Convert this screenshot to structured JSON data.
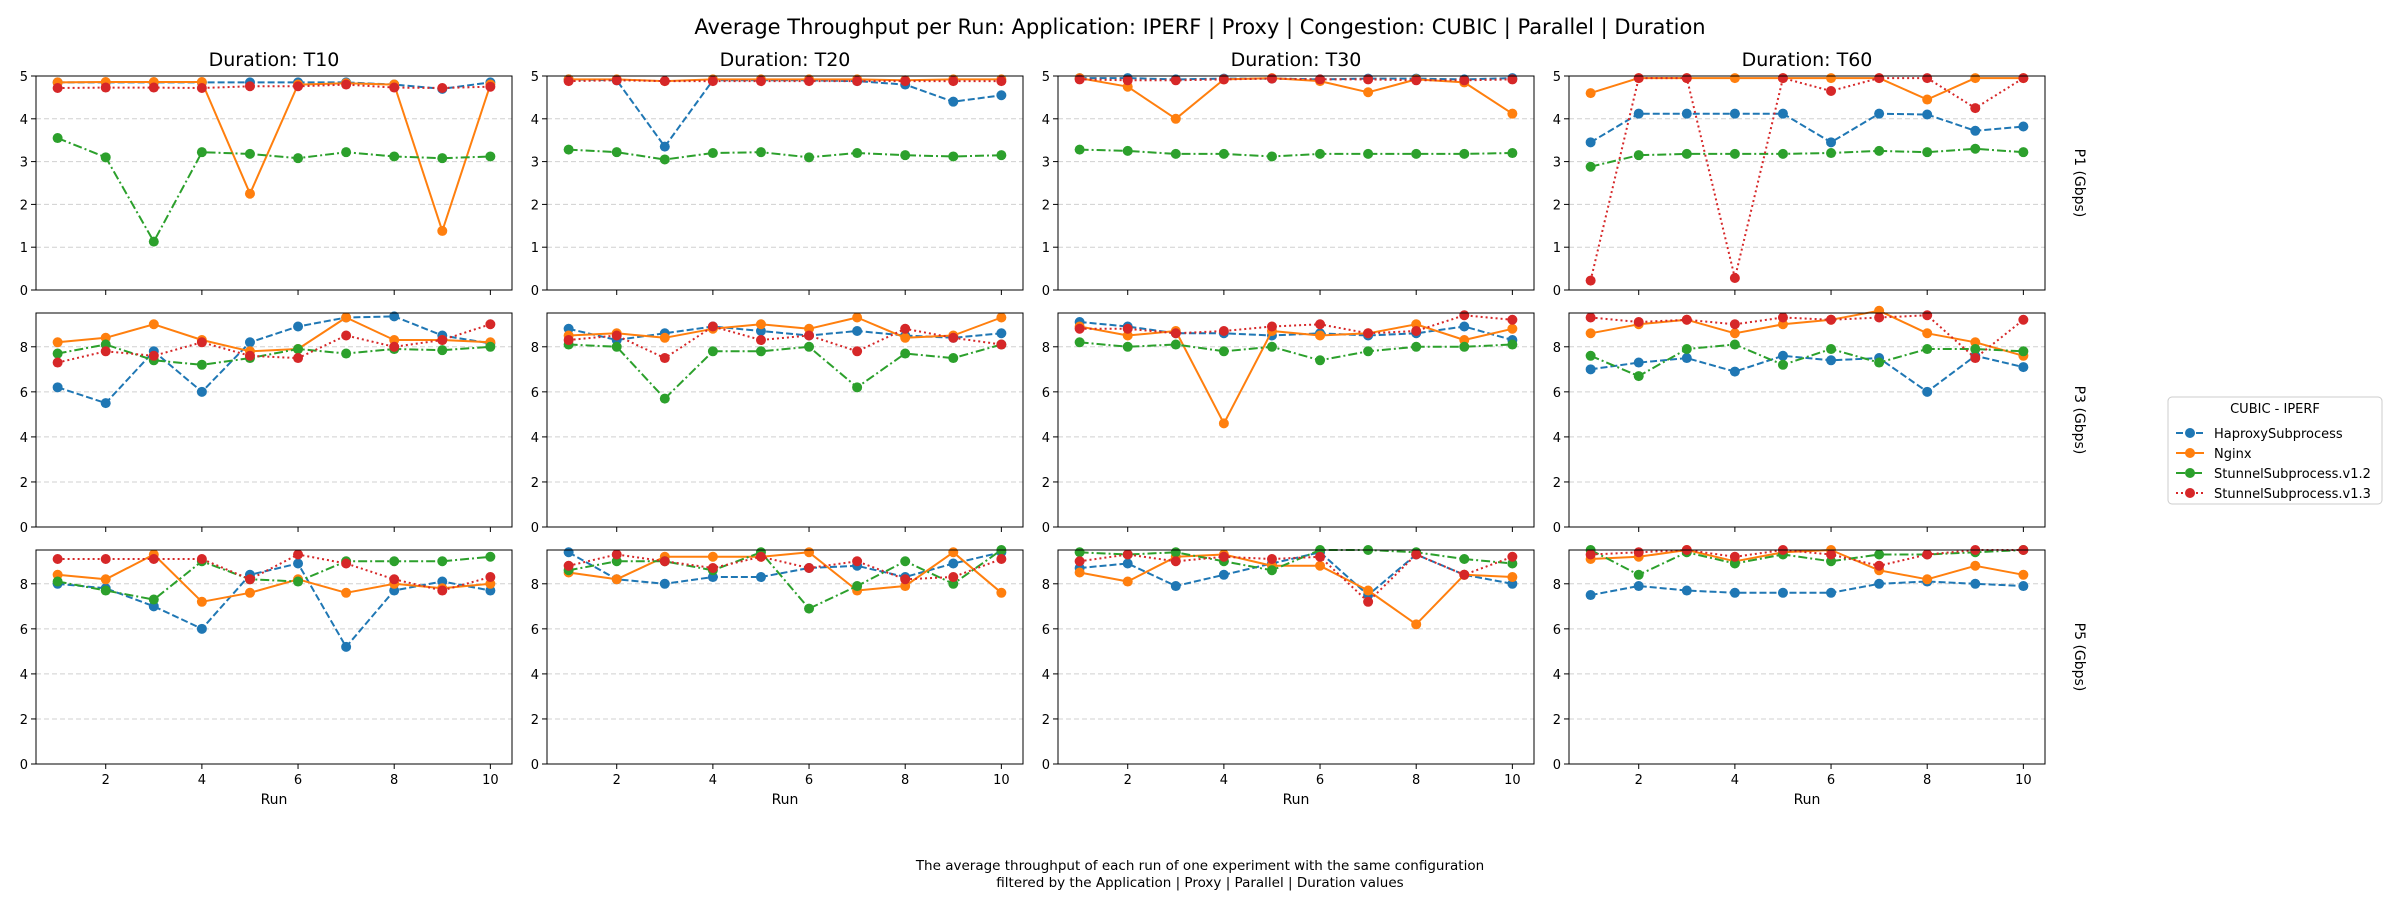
{
  "chart_data": {
    "type": "line",
    "title": "Average Throughput per Run: Application: IPERF | Proxy | Congestion: CUBIC | Parallel | Duration",
    "xlabel": "Run",
    "x": [
      1,
      2,
      3,
      4,
      5,
      6,
      7,
      8,
      9,
      10
    ],
    "xticks": [
      "2",
      "4",
      "6",
      "8",
      "10"
    ],
    "grid": "y",
    "legend": {
      "title": "CUBIC - IPERF",
      "placement": "right",
      "entries": [
        "HaproxySubprocess",
        "Nginx",
        "StunnelSubprocess.v1.2",
        "StunnelSubprocess.v1.3"
      ]
    },
    "series_styles": [
      {
        "name": "HaproxySubprocess",
        "color": "#1f77b4",
        "dash": "dashed"
      },
      {
        "name": "Nginx",
        "color": "#ff7f0e",
        "dash": "solid"
      },
      {
        "name": "StunnelSubprocess.v1.2",
        "color": "#2ca02c",
        "dash": "dashdot"
      },
      {
        "name": "StunnelSubprocess.v1.3",
        "color": "#d62728",
        "dash": "dotted"
      }
    ],
    "columns": [
      "Duration: T10",
      "Duration: T20",
      "Duration: T30",
      "Duration: T60"
    ],
    "rows": [
      {
        "ylabel": "P1 (Gbps)",
        "ylim": [
          0,
          5
        ],
        "yticks": [
          "0",
          "1",
          "2",
          "3",
          "4",
          "5"
        ]
      },
      {
        "ylabel": "P3 (Gbps)",
        "ylim": [
          0,
          9.5
        ],
        "yticks": [
          "0",
          "2",
          "4",
          "6",
          "8"
        ]
      },
      {
        "ylabel": "P5 (Gbps)",
        "ylim": [
          0,
          9.5
        ],
        "yticks": [
          "0",
          "2",
          "4",
          "6",
          "8"
        ]
      }
    ],
    "panels": [
      {
        "row": 0,
        "col": 0,
        "series": [
          {
            "name": "HaproxySubprocess",
            "values": [
              4.85,
              4.85,
              4.85,
              4.85,
              4.85,
              4.85,
              4.85,
              4.8,
              4.7,
              4.85
            ]
          },
          {
            "name": "Nginx",
            "values": [
              4.85,
              4.86,
              4.86,
              4.86,
              2.25,
              4.8,
              4.83,
              4.8,
              1.38,
              4.8
            ]
          },
          {
            "name": "StunnelSubprocess.v1.2",
            "values": [
              3.55,
              3.1,
              1.13,
              3.22,
              3.18,
              3.08,
              3.22,
              3.12,
              3.08,
              3.12
            ]
          },
          {
            "name": "StunnelSubprocess.v1.3",
            "values": [
              4.72,
              4.73,
              4.73,
              4.72,
              4.76,
              4.76,
              4.8,
              4.73,
              4.72,
              4.75
            ]
          }
        ]
      },
      {
        "row": 0,
        "col": 1,
        "series": [
          {
            "name": "HaproxySubprocess",
            "values": [
              4.92,
              4.9,
              3.35,
              4.9,
              4.9,
              4.9,
              4.88,
              4.8,
              4.4,
              4.55
            ]
          },
          {
            "name": "Nginx",
            "values": [
              4.92,
              4.92,
              4.88,
              4.92,
              4.92,
              4.92,
              4.92,
              4.9,
              4.92,
              4.92
            ]
          },
          {
            "name": "StunnelSubprocess.v1.2",
            "values": [
              3.28,
              3.22,
              3.05,
              3.2,
              3.22,
              3.1,
              3.2,
              3.15,
              3.12,
              3.15
            ]
          },
          {
            "name": "StunnelSubprocess.v1.3",
            "values": [
              4.88,
              4.9,
              4.88,
              4.88,
              4.88,
              4.88,
              4.88,
              4.88,
              4.88,
              4.88
            ]
          }
        ]
      },
      {
        "row": 0,
        "col": 2,
        "series": [
          {
            "name": "HaproxySubprocess",
            "values": [
              4.95,
              4.95,
              4.92,
              4.94,
              4.94,
              4.92,
              4.94,
              4.94,
              4.92,
              4.95
            ]
          },
          {
            "name": "Nginx",
            "values": [
              4.95,
              4.75,
              4.0,
              4.92,
              4.95,
              4.88,
              4.62,
              4.92,
              4.85,
              4.12
            ]
          },
          {
            "name": "StunnelSubprocess.v1.2",
            "values": [
              3.28,
              3.25,
              3.18,
              3.18,
              3.12,
              3.18,
              3.18,
              3.18,
              3.18,
              3.2
            ]
          },
          {
            "name": "StunnelSubprocess.v1.3",
            "values": [
              4.92,
              4.9,
              4.9,
              4.92,
              4.94,
              4.92,
              4.92,
              4.9,
              4.9,
              4.92
            ]
          }
        ]
      },
      {
        "row": 0,
        "col": 3,
        "series": [
          {
            "name": "HaproxySubprocess",
            "values": [
              3.45,
              4.12,
              4.12,
              4.12,
              4.12,
              3.45,
              4.12,
              4.1,
              3.72,
              3.82
            ]
          },
          {
            "name": "Nginx",
            "values": [
              4.6,
              4.95,
              4.95,
              4.95,
              4.95,
              4.95,
              4.95,
              4.45,
              4.95,
              4.95
            ]
          },
          {
            "name": "StunnelSubprocess.v1.2",
            "values": [
              2.88,
              3.15,
              3.18,
              3.18,
              3.18,
              3.2,
              3.25,
              3.22,
              3.3,
              3.22
            ]
          },
          {
            "name": "StunnelSubprocess.v1.3",
            "values": [
              0.22,
              4.95,
              4.95,
              0.28,
              4.95,
              4.65,
              4.95,
              4.95,
              4.25,
              4.95
            ]
          }
        ]
      },
      {
        "row": 1,
        "col": 0,
        "series": [
          {
            "name": "HaproxySubprocess",
            "values": [
              6.2,
              5.5,
              7.8,
              6.0,
              8.2,
              8.9,
              9.3,
              9.35,
              8.5,
              8.15
            ]
          },
          {
            "name": "Nginx",
            "values": [
              8.2,
              8.4,
              9.0,
              8.3,
              7.8,
              7.9,
              9.3,
              8.3,
              8.3,
              8.2
            ]
          },
          {
            "name": "StunnelSubprocess.v1.2",
            "values": [
              7.7,
              8.1,
              7.4,
              7.2,
              7.5,
              7.9,
              7.7,
              7.9,
              7.85,
              8.0
            ]
          },
          {
            "name": "StunnelSubprocess.v1.3",
            "values": [
              7.3,
              7.8,
              7.6,
              8.2,
              7.6,
              7.5,
              8.5,
              8.0,
              8.3,
              9.0
            ]
          }
        ]
      },
      {
        "row": 1,
        "col": 1,
        "series": [
          {
            "name": "HaproxySubprocess",
            "values": [
              8.8,
              8.3,
              8.6,
              8.9,
              8.7,
              8.5,
              8.7,
              8.5,
              8.4,
              8.6
            ]
          },
          {
            "name": "Nginx",
            "values": [
              8.5,
              8.6,
              8.4,
              8.8,
              9.0,
              8.8,
              9.3,
              8.4,
              8.5,
              9.3
            ]
          },
          {
            "name": "StunnelSubprocess.v1.2",
            "values": [
              8.1,
              8.0,
              5.7,
              7.8,
              7.8,
              8.0,
              6.2,
              7.7,
              7.5,
              8.1
            ]
          },
          {
            "name": "StunnelSubprocess.v1.3",
            "values": [
              8.3,
              8.5,
              7.5,
              8.9,
              8.3,
              8.5,
              7.8,
              8.8,
              8.4,
              8.1
            ]
          }
        ]
      },
      {
        "row": 1,
        "col": 2,
        "series": [
          {
            "name": "HaproxySubprocess",
            "values": [
              9.1,
              8.9,
              8.6,
              8.6,
              8.5,
              8.6,
              8.5,
              8.6,
              8.9,
              8.3
            ]
          },
          {
            "name": "Nginx",
            "values": [
              8.9,
              8.5,
              8.7,
              4.6,
              8.7,
              8.5,
              8.6,
              9.0,
              8.3,
              8.8
            ]
          },
          {
            "name": "StunnelSubprocess.v1.2",
            "values": [
              8.2,
              8.0,
              8.1,
              7.8,
              8.0,
              7.4,
              7.8,
              8.0,
              8.0,
              8.1
            ]
          },
          {
            "name": "StunnelSubprocess.v1.3",
            "values": [
              8.8,
              8.8,
              8.6,
              8.7,
              8.9,
              9.0,
              8.6,
              8.7,
              9.4,
              9.2
            ]
          }
        ]
      },
      {
        "row": 1,
        "col": 3,
        "series": [
          {
            "name": "HaproxySubprocess",
            "values": [
              7.0,
              7.3,
              7.5,
              6.9,
              7.6,
              7.4,
              7.5,
              6.0,
              7.6,
              7.1
            ]
          },
          {
            "name": "Nginx",
            "values": [
              8.6,
              9.0,
              9.2,
              8.6,
              9.0,
              9.2,
              9.6,
              8.6,
              8.2,
              7.6
            ]
          },
          {
            "name": "StunnelSubprocess.v1.2",
            "values": [
              7.6,
              6.7,
              7.9,
              8.1,
              7.2,
              7.9,
              7.3,
              7.9,
              7.9,
              7.8
            ]
          },
          {
            "name": "StunnelSubprocess.v1.3",
            "values": [
              9.3,
              9.1,
              9.2,
              9.0,
              9.3,
              9.2,
              9.3,
              9.4,
              7.5,
              9.2
            ]
          }
        ]
      },
      {
        "row": 2,
        "col": 0,
        "series": [
          {
            "name": "HaproxySubprocess",
            "values": [
              8.0,
              7.8,
              7.0,
              6.0,
              8.4,
              8.9,
              5.2,
              7.7,
              8.1,
              7.7
            ]
          },
          {
            "name": "Nginx",
            "values": [
              8.4,
              8.2,
              9.3,
              7.2,
              7.6,
              8.2,
              7.6,
              8.0,
              7.8,
              8.0
            ]
          },
          {
            "name": "StunnelSubprocess.v1.2",
            "values": [
              8.1,
              7.7,
              7.3,
              9.0,
              8.2,
              8.1,
              9.0,
              9.0,
              9.0,
              9.2
            ]
          },
          {
            "name": "StunnelSubprocess.v1.3",
            "values": [
              9.1,
              9.1,
              9.1,
              9.1,
              8.2,
              9.3,
              8.9,
              8.2,
              7.7,
              8.3
            ]
          }
        ]
      },
      {
        "row": 2,
        "col": 1,
        "series": [
          {
            "name": "HaproxySubprocess",
            "values": [
              9.4,
              8.2,
              8.0,
              8.3,
              8.3,
              8.7,
              8.8,
              8.3,
              8.9,
              9.4
            ]
          },
          {
            "name": "Nginx",
            "values": [
              8.5,
              8.2,
              9.2,
              9.2,
              9.2,
              9.4,
              7.7,
              7.9,
              9.4,
              7.6
            ]
          },
          {
            "name": "StunnelSubprocess.v1.2",
            "values": [
              8.6,
              9.0,
              9.0,
              8.6,
              9.4,
              6.9,
              7.9,
              9.0,
              8.0,
              9.5
            ]
          },
          {
            "name": "StunnelSubprocess.v1.3",
            "values": [
              8.8,
              9.3,
              9.0,
              8.7,
              9.2,
              8.7,
              9.0,
              8.2,
              8.3,
              9.1
            ]
          }
        ]
      },
      {
        "row": 2,
        "col": 2,
        "series": [
          {
            "name": "HaproxySubprocess",
            "values": [
              8.7,
              8.9,
              7.9,
              8.4,
              8.9,
              9.4,
              7.5,
              9.3,
              8.4,
              8.0
            ]
          },
          {
            "name": "Nginx",
            "values": [
              8.5,
              8.1,
              9.2,
              9.3,
              8.8,
              8.8,
              7.7,
              6.2,
              8.4,
              8.3
            ]
          },
          {
            "name": "StunnelSubprocess.v1.2",
            "values": [
              9.4,
              9.3,
              9.4,
              9.0,
              8.6,
              9.5,
              9.5,
              9.4,
              9.1,
              8.9
            ]
          },
          {
            "name": "StunnelSubprocess.v1.3",
            "values": [
              9.0,
              9.3,
              9.0,
              9.2,
              9.1,
              9.2,
              7.2,
              9.3,
              8.4,
              9.2
            ]
          }
        ]
      },
      {
        "row": 2,
        "col": 3,
        "series": [
          {
            "name": "HaproxySubprocess",
            "values": [
              7.5,
              7.9,
              7.7,
              7.6,
              7.6,
              7.6,
              8.0,
              8.1,
              8.0,
              7.9
            ]
          },
          {
            "name": "Nginx",
            "values": [
              9.1,
              9.2,
              9.5,
              9.0,
              9.4,
              9.5,
              8.6,
              8.2,
              8.8,
              8.4
            ]
          },
          {
            "name": "StunnelSubprocess.v1.2",
            "values": [
              9.5,
              8.4,
              9.4,
              8.9,
              9.3,
              9.0,
              9.3,
              9.3,
              9.4,
              9.5
            ]
          },
          {
            "name": "StunnelSubprocess.v1.3",
            "values": [
              9.3,
              9.4,
              9.5,
              9.2,
              9.5,
              9.3,
              8.8,
              9.3,
              9.5,
              9.5
            ]
          }
        ]
      }
    ]
  },
  "caption": {
    "line1": "The average throughput of each run of one experiment with the same configuration",
    "line2": "filtered by the Application | Proxy | Parallel | Duration values"
  }
}
